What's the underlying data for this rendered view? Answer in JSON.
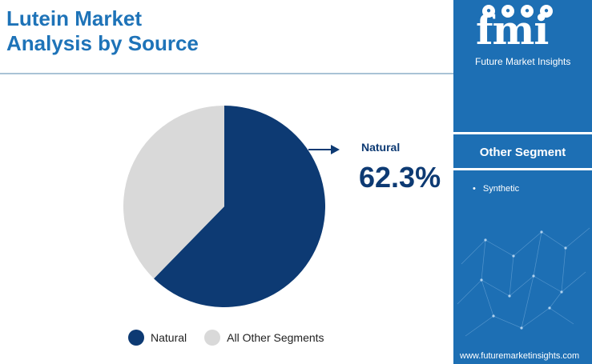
{
  "title_line1": "Lutein Market",
  "title_line2": "Analysis by Source",
  "chart_data": {
    "type": "pie",
    "slices": [
      {
        "name": "Natural",
        "value": 62.3,
        "color": "#0d3a73"
      },
      {
        "name": "All Other Segments",
        "value": 37.7,
        "color": "#d9d9d9"
      }
    ],
    "callout": {
      "label": "Natural",
      "value_text": "62.3%"
    },
    "legend": [
      "Natural",
      "All Other Segments"
    ],
    "legend_placement": "bottom"
  },
  "sidebar": {
    "brand_letters": "fmi",
    "brand_name": "Future Market Insights",
    "segment_title": "Other Segment",
    "segments": [
      "Synthetic"
    ],
    "website": "www.futuremarketinsights.com",
    "background": "#1d6fb4"
  }
}
